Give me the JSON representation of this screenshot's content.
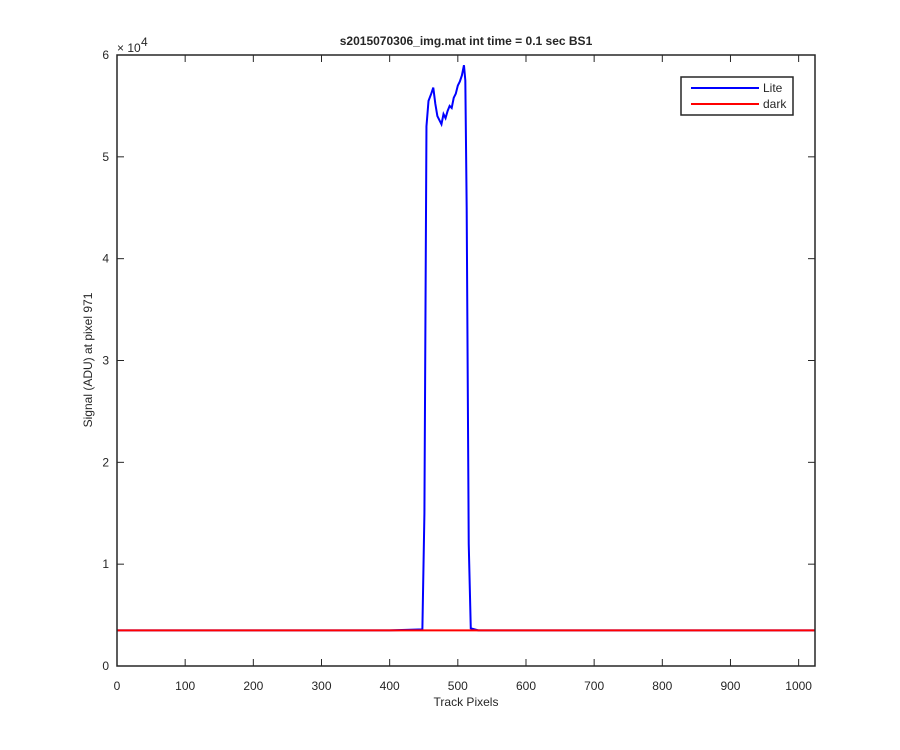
{
  "chart_data": {
    "type": "line",
    "title": "s2015070306_img.mat int time = 0.1 sec   BS1",
    "xlabel": "Track Pixels",
    "ylabel": "Signal (ADU) at pixel 971",
    "y_multiplier": {
      "base": "× 10",
      "exponent": "4"
    },
    "xlim": [
      0,
      1024
    ],
    "ylim": [
      0,
      6
    ],
    "xticks": [
      0,
      100,
      200,
      300,
      400,
      500,
      600,
      700,
      800,
      900,
      1000
    ],
    "yticks": [
      0,
      1,
      2,
      3,
      4,
      5,
      6
    ],
    "legend": "upper right",
    "series": [
      {
        "name": "Lite",
        "color": "#0000ff",
        "x": [
          0,
          100,
          200,
          300,
          400,
          448,
          451,
          454,
          457,
          461,
          464,
          467,
          470,
          473,
          476,
          479,
          482,
          485,
          488,
          491,
          494,
          497,
          500,
          503,
          506,
          509,
          511,
          513,
          516,
          519,
          530,
          600,
          700,
          800,
          900,
          1024
        ],
        "values": [
          0.35,
          0.35,
          0.35,
          0.35,
          0.35,
          0.36,
          1.5,
          5.3,
          5.55,
          5.62,
          5.68,
          5.52,
          5.4,
          5.36,
          5.32,
          5.42,
          5.38,
          5.45,
          5.5,
          5.48,
          5.58,
          5.62,
          5.7,
          5.74,
          5.8,
          5.9,
          5.75,
          4.5,
          1.2,
          0.37,
          0.35,
          0.35,
          0.35,
          0.35,
          0.35,
          0.35
        ]
      },
      {
        "name": "dark",
        "color": "#ff0000",
        "x": [
          0,
          256,
          512,
          768,
          1024
        ],
        "values": [
          0.35,
          0.35,
          0.35,
          0.35,
          0.35
        ]
      }
    ]
  }
}
